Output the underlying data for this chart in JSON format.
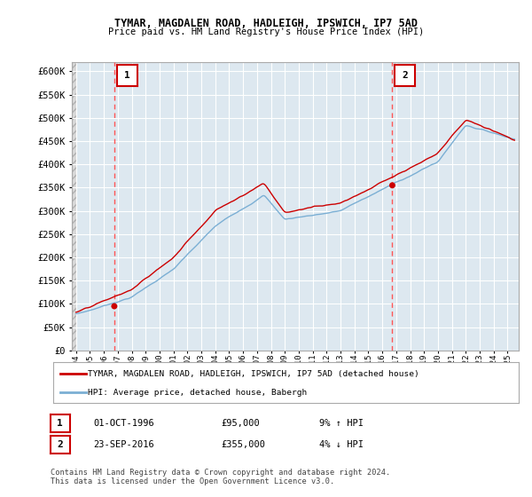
{
  "title": "TYMAR, MAGDALEN ROAD, HADLEIGH, IPSWICH, IP7 5AD",
  "subtitle": "Price paid vs. HM Land Registry's House Price Index (HPI)",
  "legend_line1": "TYMAR, MAGDALEN ROAD, HADLEIGH, IPSWICH, IP7 5AD (detached house)",
  "legend_line2": "HPI: Average price, detached house, Babergh",
  "annotation1_date": "01-OCT-1996",
  "annotation1_price": "£95,000",
  "annotation1_hpi": "9% ↑ HPI",
  "annotation2_date": "23-SEP-2016",
  "annotation2_price": "£355,000",
  "annotation2_hpi": "4% ↓ HPI",
  "footer": "Contains HM Land Registry data © Crown copyright and database right 2024.\nThis data is licensed under the Open Government Licence v3.0.",
  "hpi_color": "#7bafd4",
  "price_color": "#cc0000",
  "dot_color": "#cc0000",
  "vline_color": "#ff5555",
  "annotation_box_color": "#cc0000",
  "bg_color": "#dde8f0",
  "grid_color": "#ffffff",
  "hatch_color": "#c8c8c8",
  "ylim": [
    0,
    620000
  ],
  "yticks": [
    0,
    50000,
    100000,
    150000,
    200000,
    250000,
    300000,
    350000,
    400000,
    450000,
    500000,
    550000,
    600000
  ],
  "ytick_labels": [
    "£0",
    "£50K",
    "£100K",
    "£150K",
    "£200K",
    "£250K",
    "£300K",
    "£350K",
    "£400K",
    "£450K",
    "£500K",
    "£550K",
    "£600K"
  ],
  "sale1_x": 1996.75,
  "sale1_y": 95000,
  "sale2_x": 2016.72,
  "sale2_y": 355000,
  "xlim_left": 1993.7,
  "xlim_right": 2025.8
}
